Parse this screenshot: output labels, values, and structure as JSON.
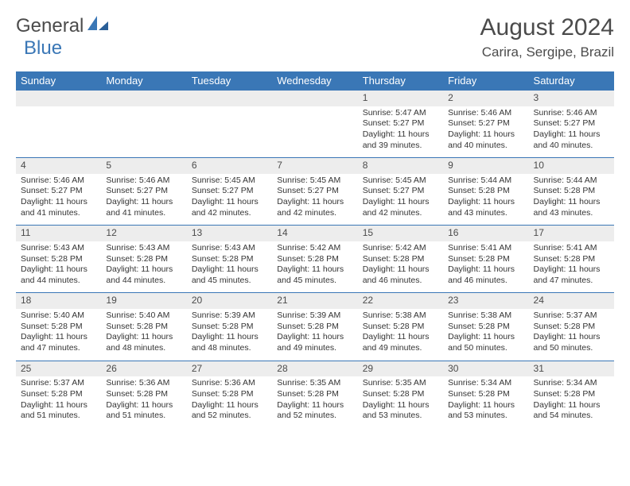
{
  "logo": {
    "text1": "General",
    "text2": "Blue"
  },
  "title": "August 2024",
  "location": "Carira, Sergipe, Brazil",
  "colors": {
    "header_bg": "#3a77b6",
    "header_text": "#ffffff",
    "daynum_bg": "#ededed",
    "border": "#3a77b6",
    "text": "#343434",
    "title_text": "#4b4b4b"
  },
  "day_headers": [
    "Sunday",
    "Monday",
    "Tuesday",
    "Wednesday",
    "Thursday",
    "Friday",
    "Saturday"
  ],
  "weeks": [
    [
      null,
      null,
      null,
      null,
      {
        "n": "1",
        "sr": "5:47 AM",
        "ss": "5:27 PM",
        "dl": "11 hours and 39 minutes."
      },
      {
        "n": "2",
        "sr": "5:46 AM",
        "ss": "5:27 PM",
        "dl": "11 hours and 40 minutes."
      },
      {
        "n": "3",
        "sr": "5:46 AM",
        "ss": "5:27 PM",
        "dl": "11 hours and 40 minutes."
      }
    ],
    [
      {
        "n": "4",
        "sr": "5:46 AM",
        "ss": "5:27 PM",
        "dl": "11 hours and 41 minutes."
      },
      {
        "n": "5",
        "sr": "5:46 AM",
        "ss": "5:27 PM",
        "dl": "11 hours and 41 minutes."
      },
      {
        "n": "6",
        "sr": "5:45 AM",
        "ss": "5:27 PM",
        "dl": "11 hours and 42 minutes."
      },
      {
        "n": "7",
        "sr": "5:45 AM",
        "ss": "5:27 PM",
        "dl": "11 hours and 42 minutes."
      },
      {
        "n": "8",
        "sr": "5:45 AM",
        "ss": "5:27 PM",
        "dl": "11 hours and 42 minutes."
      },
      {
        "n": "9",
        "sr": "5:44 AM",
        "ss": "5:28 PM",
        "dl": "11 hours and 43 minutes."
      },
      {
        "n": "10",
        "sr": "5:44 AM",
        "ss": "5:28 PM",
        "dl": "11 hours and 43 minutes."
      }
    ],
    [
      {
        "n": "11",
        "sr": "5:43 AM",
        "ss": "5:28 PM",
        "dl": "11 hours and 44 minutes."
      },
      {
        "n": "12",
        "sr": "5:43 AM",
        "ss": "5:28 PM",
        "dl": "11 hours and 44 minutes."
      },
      {
        "n": "13",
        "sr": "5:43 AM",
        "ss": "5:28 PM",
        "dl": "11 hours and 45 minutes."
      },
      {
        "n": "14",
        "sr": "5:42 AM",
        "ss": "5:28 PM",
        "dl": "11 hours and 45 minutes."
      },
      {
        "n": "15",
        "sr": "5:42 AM",
        "ss": "5:28 PM",
        "dl": "11 hours and 46 minutes."
      },
      {
        "n": "16",
        "sr": "5:41 AM",
        "ss": "5:28 PM",
        "dl": "11 hours and 46 minutes."
      },
      {
        "n": "17",
        "sr": "5:41 AM",
        "ss": "5:28 PM",
        "dl": "11 hours and 47 minutes."
      }
    ],
    [
      {
        "n": "18",
        "sr": "5:40 AM",
        "ss": "5:28 PM",
        "dl": "11 hours and 47 minutes."
      },
      {
        "n": "19",
        "sr": "5:40 AM",
        "ss": "5:28 PM",
        "dl": "11 hours and 48 minutes."
      },
      {
        "n": "20",
        "sr": "5:39 AM",
        "ss": "5:28 PM",
        "dl": "11 hours and 48 minutes."
      },
      {
        "n": "21",
        "sr": "5:39 AM",
        "ss": "5:28 PM",
        "dl": "11 hours and 49 minutes."
      },
      {
        "n": "22",
        "sr": "5:38 AM",
        "ss": "5:28 PM",
        "dl": "11 hours and 49 minutes."
      },
      {
        "n": "23",
        "sr": "5:38 AM",
        "ss": "5:28 PM",
        "dl": "11 hours and 50 minutes."
      },
      {
        "n": "24",
        "sr": "5:37 AM",
        "ss": "5:28 PM",
        "dl": "11 hours and 50 minutes."
      }
    ],
    [
      {
        "n": "25",
        "sr": "5:37 AM",
        "ss": "5:28 PM",
        "dl": "11 hours and 51 minutes."
      },
      {
        "n": "26",
        "sr": "5:36 AM",
        "ss": "5:28 PM",
        "dl": "11 hours and 51 minutes."
      },
      {
        "n": "27",
        "sr": "5:36 AM",
        "ss": "5:28 PM",
        "dl": "11 hours and 52 minutes."
      },
      {
        "n": "28",
        "sr": "5:35 AM",
        "ss": "5:28 PM",
        "dl": "11 hours and 52 minutes."
      },
      {
        "n": "29",
        "sr": "5:35 AM",
        "ss": "5:28 PM",
        "dl": "11 hours and 53 minutes."
      },
      {
        "n": "30",
        "sr": "5:34 AM",
        "ss": "5:28 PM",
        "dl": "11 hours and 53 minutes."
      },
      {
        "n": "31",
        "sr": "5:34 AM",
        "ss": "5:28 PM",
        "dl": "11 hours and 54 minutes."
      }
    ]
  ],
  "labels": {
    "sunrise": "Sunrise: ",
    "sunset": "Sunset: ",
    "daylight": "Daylight: "
  }
}
